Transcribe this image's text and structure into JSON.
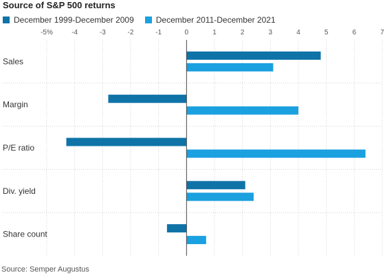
{
  "title": "Source of S&P 500 returns",
  "source": "Source: Semper Augustus",
  "colors": {
    "series1": "#0f73a8",
    "series2": "#1ba0e0",
    "grid": "#d0d0d0",
    "axis": "#444444"
  },
  "chart_data": {
    "type": "bar",
    "orientation": "horizontal",
    "title": "Source of S&P 500 returns",
    "xlabel": "",
    "ylabel": "",
    "xlim": [
      -5,
      7
    ],
    "x_ticks": [
      -5,
      -4,
      -3,
      -2,
      -1,
      0,
      1,
      2,
      3,
      4,
      5,
      6,
      7
    ],
    "x_tick_labels": [
      "-5%",
      "-4",
      "-3",
      "-2",
      "-1",
      "0",
      "1",
      "2",
      "3",
      "4",
      "5",
      "6",
      "7"
    ],
    "categories": [
      "Sales",
      "Margin",
      "P/E ratio",
      "Div. yield",
      "Share count"
    ],
    "series": [
      {
        "name": "December 1999-December 2009",
        "values": [
          4.8,
          -2.8,
          -4.3,
          2.1,
          -0.7
        ]
      },
      {
        "name": "December 2011-December 2021",
        "values": [
          3.1,
          4.0,
          6.4,
          2.4,
          0.7
        ]
      }
    ],
    "grid": true,
    "legend_position": "top-left"
  }
}
